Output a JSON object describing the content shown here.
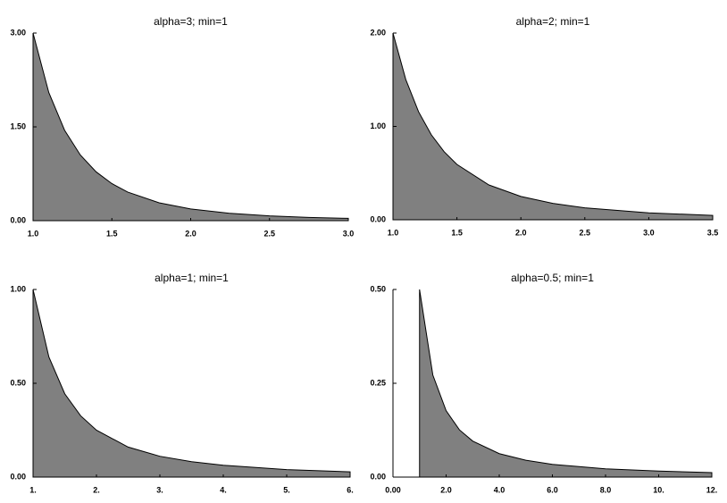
{
  "chart_data": [
    {
      "type": "area",
      "title": "alpha=3; min=1",
      "color": "#808080",
      "x": [
        1,
        1.1,
        1.2,
        1.3,
        1.4,
        1.5,
        1.6,
        1.8,
        2.0,
        2.25,
        2.5,
        2.75,
        3.0
      ],
      "values": [
        3,
        2.049,
        1.447,
        1.05,
        0.781,
        0.593,
        0.458,
        0.286,
        0.188,
        0.117,
        0.077,
        0.052,
        0.037
      ],
      "xlim": [
        1,
        3
      ],
      "ylim": [
        0,
        3
      ],
      "xticks": [
        {
          "value": 1,
          "label": "1.0"
        },
        {
          "value": 1.5,
          "label": "1.5"
        },
        {
          "value": 2,
          "label": "2.0"
        },
        {
          "value": 2.5,
          "label": "2.5"
        },
        {
          "value": 3,
          "label": "3.0"
        }
      ],
      "yticks": [
        {
          "value": 0,
          "label": "0.00"
        },
        {
          "value": 1.5,
          "label": "1.50"
        },
        {
          "value": 3,
          "label": "3.00"
        }
      ]
    },
    {
      "type": "area",
      "title": "alpha=2; min=1",
      "color": "#808080",
      "x": [
        1,
        1.1,
        1.2,
        1.3,
        1.4,
        1.5,
        1.75,
        2,
        2.25,
        2.5,
        3,
        3.5
      ],
      "values": [
        2,
        1.503,
        1.157,
        0.91,
        0.729,
        0.593,
        0.373,
        0.25,
        0.176,
        0.128,
        0.074,
        0.047
      ],
      "xlim": [
        1,
        3.5
      ],
      "ylim": [
        0,
        2
      ],
      "xticks": [
        {
          "value": 1,
          "label": "1.0"
        },
        {
          "value": 1.5,
          "label": "1.5"
        },
        {
          "value": 2,
          "label": "2.0"
        },
        {
          "value": 2.5,
          "label": "2.5"
        },
        {
          "value": 3,
          "label": "3.0"
        },
        {
          "value": 3.5,
          "label": "3.5"
        }
      ],
      "yticks": [
        {
          "value": 0,
          "label": "0.00"
        },
        {
          "value": 1,
          "label": "1.00"
        },
        {
          "value": 2,
          "label": "2.00"
        }
      ]
    },
    {
      "type": "area",
      "title": "alpha=1; min=1",
      "color": "#808080",
      "x": [
        1,
        1.25,
        1.5,
        1.75,
        2,
        2.5,
        3,
        3.5,
        4,
        5,
        6
      ],
      "values": [
        1,
        0.64,
        0.444,
        0.327,
        0.25,
        0.16,
        0.111,
        0.082,
        0.063,
        0.04,
        0.028
      ],
      "xlim": [
        1,
        6
      ],
      "ylim": [
        0,
        1
      ],
      "xticks": [
        {
          "value": 1,
          "label": "1."
        },
        {
          "value": 2,
          "label": "2."
        },
        {
          "value": 3,
          "label": "3."
        },
        {
          "value": 4,
          "label": "4."
        },
        {
          "value": 5,
          "label": "5."
        },
        {
          "value": 6,
          "label": "6."
        }
      ],
      "yticks": [
        {
          "value": 0,
          "label": "0.00"
        },
        {
          "value": 0.5,
          "label": "0.50"
        },
        {
          "value": 1,
          "label": "1.00"
        }
      ]
    },
    {
      "type": "area",
      "title": "alpha=0.5; min=1",
      "color": "#808080",
      "x": [
        1,
        1.5,
        2,
        2.5,
        3,
        4,
        5,
        6,
        8,
        10,
        12
      ],
      "values": [
        0.5,
        0.272,
        0.177,
        0.126,
        0.096,
        0.0625,
        0.045,
        0.034,
        0.022,
        0.016,
        0.012
      ],
      "xlim": [
        0,
        12
      ],
      "ylim": [
        0,
        0.5
      ],
      "xticks": [
        {
          "value": 0,
          "label": "0.00"
        },
        {
          "value": 2,
          "label": "2.0"
        },
        {
          "value": 4,
          "label": "4.0"
        },
        {
          "value": 6,
          "label": "6.0"
        },
        {
          "value": 8,
          "label": "8.0"
        },
        {
          "value": 10,
          "label": "10."
        },
        {
          "value": 12,
          "label": "12."
        }
      ],
      "yticks": [
        {
          "value": 0,
          "label": "0.00"
        },
        {
          "value": 0.25,
          "label": "0.25"
        },
        {
          "value": 0.5,
          "label": "0.50"
        }
      ]
    }
  ]
}
